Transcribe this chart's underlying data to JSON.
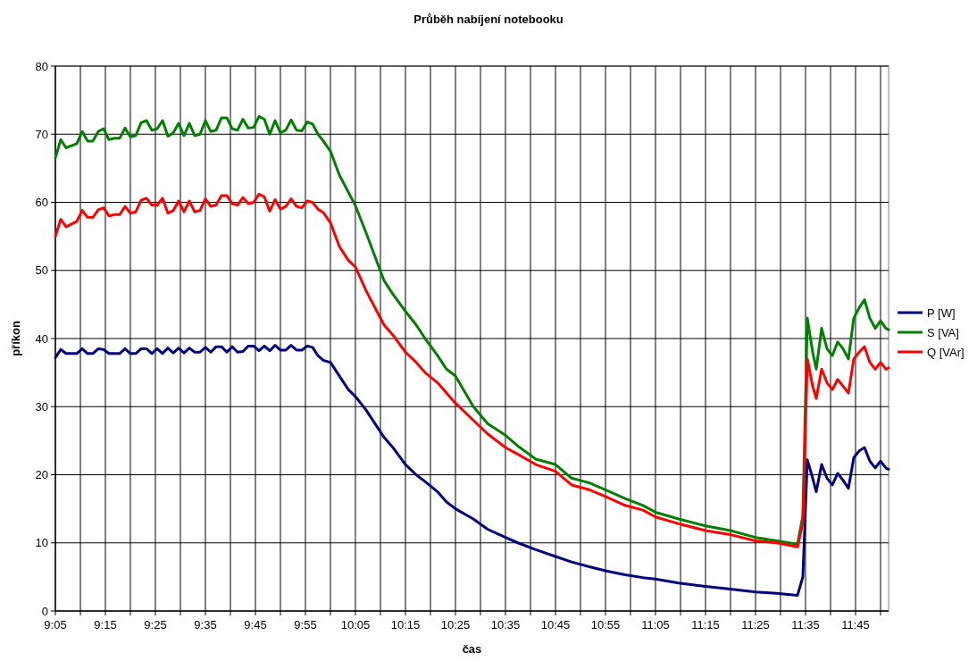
{
  "chart_data": {
    "type": "line",
    "title": "Průběh nabíjení notebooku",
    "xlabel": "čas",
    "ylabel": "příkon",
    "x": [
      9.0833,
      9.1012,
      9.119,
      9.1369,
      9.1548,
      9.1726,
      9.1905,
      9.2083,
      9.2262,
      9.244,
      9.2619,
      9.2798,
      9.2976,
      9.3155,
      9.3333,
      9.3512,
      9.369,
      9.3869,
      9.4048,
      9.4226,
      9.4405,
      9.4583,
      9.4762,
      9.494,
      9.5119,
      9.5298,
      9.5476,
      9.5655,
      9.5833,
      9.6012,
      9.619,
      9.6369,
      9.6548,
      9.6726,
      9.6905,
      9.7083,
      9.7262,
      9.744,
      9.7619,
      9.7798,
      9.7976,
      9.8155,
      9.8333,
      9.8512,
      9.869,
      9.8869,
      9.9048,
      9.9226,
      9.9405,
      9.9583,
      9.9762,
      10.0,
      10.0298,
      10.0595,
      10.0833,
      10.119,
      10.1488,
      10.1786,
      10.2083,
      10.25,
      10.2857,
      10.3155,
      10.3571,
      10.3869,
      10.4167,
      10.4762,
      10.5238,
      10.5833,
      10.625,
      10.6845,
      10.75,
      10.8036,
      10.8631,
      10.9167,
      10.9821,
      11.0417,
      11.0833,
      11.1607,
      11.25,
      11.3333,
      11.4167,
      11.4881,
      11.5565,
      11.5744,
      11.5893,
      11.6071,
      11.619,
      11.6369,
      11.6548,
      11.6726,
      11.6905,
      11.7083,
      11.7262,
      11.744,
      11.7619,
      11.7798,
      11.7976,
      11.8155,
      11.8333,
      11.8512,
      11.8601
    ],
    "series": [
      {
        "name": "P [W]",
        "color": "#000080",
        "values": [
          37.2,
          38.4,
          37.8,
          37.8,
          37.8,
          38.5,
          37.8,
          37.8,
          38.5,
          38.4,
          37.8,
          37.8,
          37.8,
          38.5,
          37.8,
          37.8,
          38.5,
          38.5,
          37.8,
          38.5,
          37.8,
          38.6,
          37.9,
          38.6,
          37.9,
          38.6,
          38,
          38,
          38.7,
          38,
          38.8,
          38.8,
          38,
          38.8,
          38,
          38.1,
          38.9,
          38.9,
          38.2,
          38.9,
          38.2,
          39,
          38.3,
          38.3,
          39,
          38.3,
          38.3,
          38.9,
          38.7,
          37.5,
          36.8,
          36.5,
          34.5,
          32.5,
          31.5,
          29.5,
          27.5,
          25.5,
          24,
          21.5,
          20,
          19,
          17.5,
          16,
          15,
          13.5,
          12,
          10.8,
          10,
          9,
          8,
          7.2,
          6.5,
          5.9,
          5.3,
          4.9,
          4.7,
          4.1,
          3.6,
          3.2,
          2.8,
          2.6,
          2.3,
          5,
          22.2,
          19.5,
          17.5,
          21.5,
          19.5,
          18.5,
          20.2,
          19.2,
          18,
          22.5,
          23.5,
          24,
          22,
          21,
          22,
          21,
          20.8
        ]
      },
      {
        "name": "S [VA]",
        "color": "#008000",
        "values": [
          66.5,
          69.2,
          68,
          68.3,
          68.6,
          70.4,
          69,
          69,
          70.4,
          70.8,
          69.2,
          69.4,
          69.4,
          70.9,
          69.6,
          69.8,
          71.7,
          72,
          70.6,
          70.8,
          72,
          69.7,
          70.2,
          71.6,
          69.8,
          71.6,
          69.8,
          70,
          72,
          70.4,
          70.6,
          72.4,
          72.4,
          70.8,
          70.6,
          72.2,
          70.9,
          71,
          72.6,
          72.2,
          70,
          72,
          70.2,
          70.6,
          72.1,
          70.6,
          70.5,
          71.8,
          71.5,
          70,
          69,
          67.5,
          64,
          61.5,
          59.5,
          55.5,
          52,
          48.5,
          46.5,
          44,
          42,
          40,
          37.5,
          35.5,
          34.5,
          30,
          27.5,
          25.8,
          24.2,
          22.3,
          21.5,
          19.5,
          18.8,
          17.8,
          16.5,
          15.5,
          14.5,
          13.5,
          12.5,
          11.8,
          10.8,
          10.3,
          9.8,
          14,
          43,
          38,
          35.5,
          41.5,
          38.5,
          37.5,
          39.5,
          38.5,
          37,
          43,
          44.5,
          45.7,
          43,
          41.5,
          42.6,
          41.5,
          41.3
        ]
      },
      {
        "name": "Q [VAr]",
        "color": "#ff0000",
        "values": [
          55,
          57.5,
          56.4,
          56.8,
          57.2,
          58.8,
          57.8,
          57.8,
          58.9,
          59.2,
          58,
          58.2,
          58.2,
          59.4,
          58.4,
          58.6,
          60.3,
          60.6,
          59.6,
          59.6,
          60.6,
          58.4,
          58.8,
          60.2,
          58.6,
          60.2,
          58.6,
          58.8,
          60.5,
          59.4,
          59.6,
          61,
          61,
          59.8,
          59.6,
          60.7,
          59.8,
          60,
          61.2,
          60.8,
          58.7,
          60.4,
          59,
          59.4,
          60.5,
          59.4,
          59.2,
          60.2,
          60,
          59,
          58.5,
          57,
          53.5,
          51.5,
          50.5,
          47,
          44.5,
          42,
          40.5,
          38,
          36.5,
          35,
          33.5,
          32,
          30.5,
          28,
          26,
          24,
          23,
          21.5,
          20.5,
          18.5,
          17.8,
          16.8,
          15.5,
          14.8,
          13.8,
          12.8,
          11.8,
          11.2,
          10.3,
          10,
          9.4,
          13,
          37,
          33,
          31.2,
          35.5,
          33.5,
          32.5,
          34,
          33,
          32,
          37,
          38,
          38.8,
          36.5,
          35.5,
          36.5,
          35.5,
          35.7
        ]
      }
    ],
    "xlim": [
      9.0833,
      11.8601
    ],
    "xticks": [
      {
        "value": 9.0833,
        "label": "9:05"
      },
      {
        "value": 9.1667,
        "label": null
      },
      {
        "value": 9.25,
        "label": "9:15"
      },
      {
        "value": 9.3333,
        "label": null
      },
      {
        "value": 9.4167,
        "label": "9:25"
      },
      {
        "value": 9.5,
        "label": null
      },
      {
        "value": 9.5833,
        "label": "9:35"
      },
      {
        "value": 9.6667,
        "label": null
      },
      {
        "value": 9.75,
        "label": "9:45"
      },
      {
        "value": 9.8333,
        "label": null
      },
      {
        "value": 9.9167,
        "label": "9:55"
      },
      {
        "value": 10,
        "label": null
      },
      {
        "value": 10.0833,
        "label": "10:05"
      },
      {
        "value": 10.1667,
        "label": null
      },
      {
        "value": 10.25,
        "label": "10:15"
      },
      {
        "value": 10.3333,
        "label": null
      },
      {
        "value": 10.4167,
        "label": "10:25"
      },
      {
        "value": 10.5,
        "label": null
      },
      {
        "value": 10.5833,
        "label": "10:35"
      },
      {
        "value": 10.6667,
        "label": null
      },
      {
        "value": 10.75,
        "label": "10:45"
      },
      {
        "value": 10.8333,
        "label": null
      },
      {
        "value": 10.9167,
        "label": "10:55"
      },
      {
        "value": 11,
        "label": null
      },
      {
        "value": 11.0833,
        "label": "11:05"
      },
      {
        "value": 11.1667,
        "label": null
      },
      {
        "value": 11.25,
        "label": "11:15"
      },
      {
        "value": 11.3333,
        "label": null
      },
      {
        "value": 11.4167,
        "label": "11:25"
      },
      {
        "value": 11.5,
        "label": null
      },
      {
        "value": 11.5833,
        "label": "11:35"
      },
      {
        "value": 11.6667,
        "label": null
      },
      {
        "value": 11.75,
        "label": "11:45"
      },
      {
        "value": 11.8333,
        "label": null
      }
    ],
    "ylim": [
      0,
      80
    ],
    "yticks": [
      0,
      10,
      20,
      30,
      40,
      50,
      60,
      70,
      80
    ],
    "grid": true,
    "legend": "right"
  }
}
